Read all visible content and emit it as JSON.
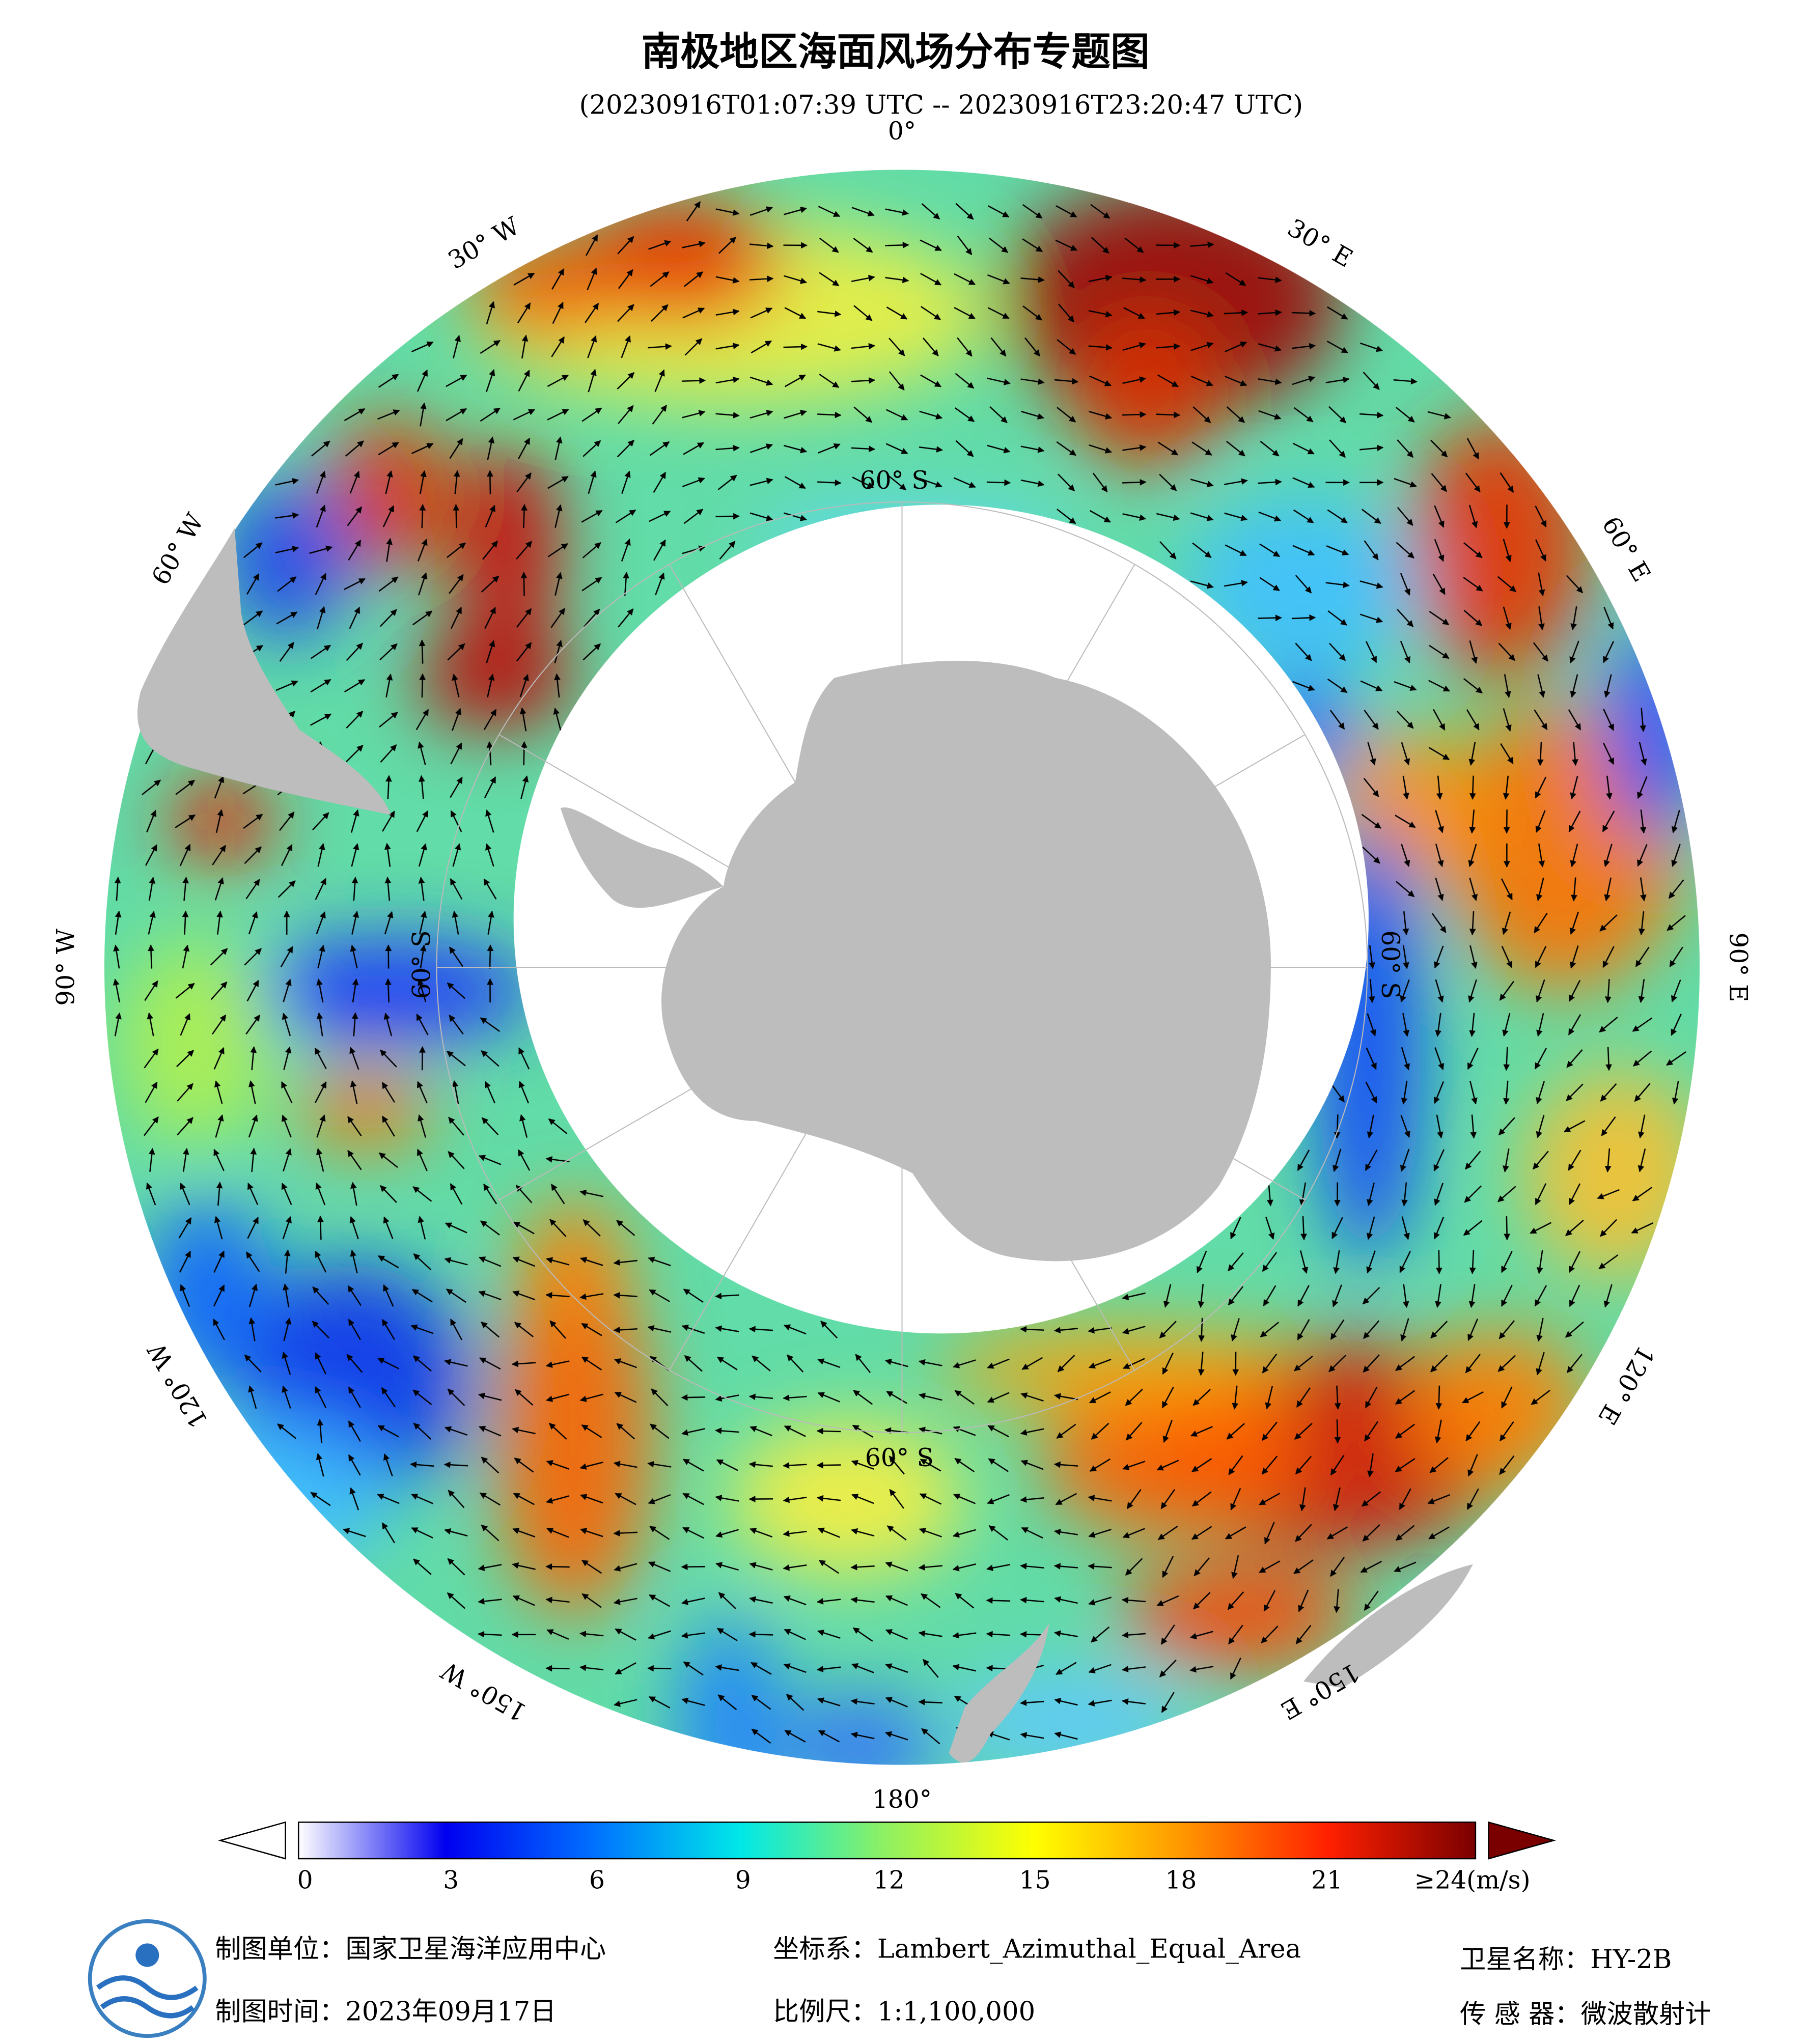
{
  "header": {
    "title": "南极地区海面风场分布专题图",
    "subtitle": "(20230916T01:07:39 UTC -- 20230916T23:20:47 UTC)"
  },
  "map": {
    "lon_labels": [
      "0°",
      "30° E",
      "60° E",
      "90° E",
      "120° E",
      "150° E",
      "180°",
      "150° W",
      "120° W",
      "90° W",
      "60° W",
      "30° W"
    ],
    "lat_labels": [
      "60° S",
      "60° S",
      "60° S",
      "60° S"
    ]
  },
  "colorbar": {
    "ticks": [
      0,
      3,
      6,
      9,
      12,
      15,
      18,
      21
    ],
    "max_label": "≥24(m/s)",
    "colors": [
      "#ffffff",
      "#0000f0",
      "#0070ff",
      "#00e8e8",
      "#90f060",
      "#ffff00",
      "#ff9800",
      "#ff2000",
      "#7a0000"
    ]
  },
  "footer": {
    "unit": "制图单位：国家卫星海洋应用中心",
    "date": "制图时间：2023年09月17日",
    "crs": "坐标系：Lambert_Azimuthal_Equal_Area",
    "scale": "比例尺：1:1,100,000",
    "satellite": "卫星名称：HY-2B",
    "sensor": "传 感 器：微波散射计"
  }
}
